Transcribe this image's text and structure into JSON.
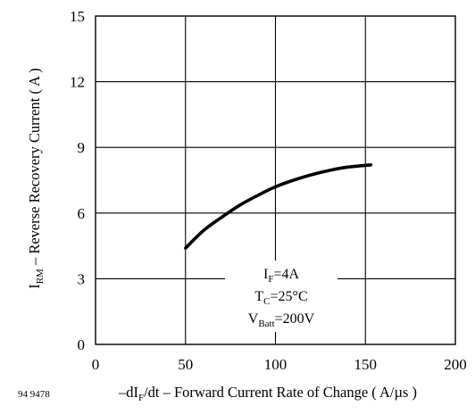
{
  "chart_data": {
    "type": "line",
    "title": "",
    "figure_code": "94 9478",
    "xlabel": {
      "prefix": "–dI",
      "sub": "F",
      "suffix": "/dt – Forward Current Rate of Change ( A/µs )"
    },
    "ylabel": {
      "main": "I",
      "sub": "RM",
      "suffix": " – Reverse Recovery Current ( A )"
    },
    "xlim": [
      0,
      200
    ],
    "ylim": [
      0,
      15
    ],
    "x_ticks": [
      0,
      50,
      100,
      150,
      200
    ],
    "y_ticks": [
      0,
      3,
      6,
      9,
      12,
      15
    ],
    "grid": true,
    "legend": "none",
    "line_color": "#000000",
    "series": [
      {
        "x": [
          50,
          60,
          70,
          80,
          90,
          100,
          110,
          120,
          130,
          140,
          153
        ],
        "y": [
          4.4,
          5.2,
          5.8,
          6.35,
          6.8,
          7.2,
          7.5,
          7.75,
          7.95,
          8.1,
          8.2
        ]
      }
    ],
    "annotation": {
      "lines": [
        {
          "main": "I",
          "sub": "F",
          "rest": "=4A"
        },
        {
          "main": "T",
          "sub": "C",
          "rest": "=25°C"
        },
        {
          "main": "V",
          "sub": "Batt",
          "rest": "=200V"
        }
      ]
    }
  }
}
